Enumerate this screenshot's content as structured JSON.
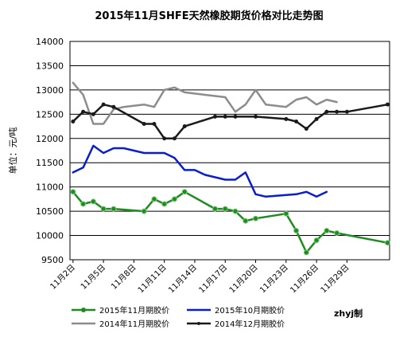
{
  "chart_data": {
    "type": "line",
    "title": "2015年11月SHFE天然橡胶期货价格对比走势图",
    "ylabel": "单位：元/吨",
    "ylim": [
      9500,
      14000
    ],
    "yticks": [
      9500,
      10000,
      10500,
      11000,
      11500,
      12000,
      12500,
      13000,
      13500,
      14000
    ],
    "xticks": [
      {
        "x": 2,
        "label": "11月2日"
      },
      {
        "x": 5,
        "label": "11月5日"
      },
      {
        "x": 8,
        "label": "11月8日"
      },
      {
        "x": 11,
        "label": "11月11日"
      },
      {
        "x": 14,
        "label": "11月14日"
      },
      {
        "x": 17,
        "label": "11月17日"
      },
      {
        "x": 20,
        "label": "11月20日"
      },
      {
        "x": 23,
        "label": "11月23日"
      },
      {
        "x": 26,
        "label": "11月26日"
      },
      {
        "x": 29,
        "label": "11月29日"
      }
    ],
    "xlim": [
      1.7,
      33.2
    ],
    "grid": true,
    "legend_position": "bottom",
    "credit": "zhyj制",
    "series": [
      {
        "name": "2015年11月期胶价",
        "color": "#1f8c1f",
        "marker": "circle",
        "points": [
          [
            2,
            10900
          ],
          [
            3,
            10650
          ],
          [
            4,
            10700
          ],
          [
            5,
            10550
          ],
          [
            6,
            10550
          ],
          [
            9,
            10500
          ],
          [
            10,
            10750
          ],
          [
            11,
            10650
          ],
          [
            12,
            10750
          ],
          [
            13,
            10900
          ],
          [
            16,
            10550
          ],
          [
            17,
            10550
          ],
          [
            18,
            10500
          ],
          [
            19,
            10300
          ],
          [
            20,
            10350
          ],
          [
            23,
            10450
          ],
          [
            24,
            10100
          ],
          [
            25,
            9650
          ],
          [
            26,
            9900
          ],
          [
            27,
            10100
          ],
          [
            28,
            10050
          ],
          [
            33,
            9850
          ]
        ]
      },
      {
        "name": "2015年10月期胶价",
        "color": "#0a1ecc",
        "marker": "none",
        "points": [
          [
            2,
            11300
          ],
          [
            3,
            11400
          ],
          [
            4,
            11850
          ],
          [
            5,
            11700
          ],
          [
            6,
            11800
          ],
          [
            7,
            11800
          ],
          [
            9,
            11700
          ],
          [
            10,
            11700
          ],
          [
            11,
            11700
          ],
          [
            12,
            11600
          ],
          [
            13,
            11350
          ],
          [
            14,
            11350
          ],
          [
            15,
            11250
          ],
          [
            17,
            11150
          ],
          [
            18,
            11150
          ],
          [
            19,
            11300
          ],
          [
            20,
            10850
          ],
          [
            21,
            10800
          ],
          [
            24,
            10850
          ],
          [
            25,
            10900
          ],
          [
            26,
            10800
          ],
          [
            27,
            10900
          ]
        ]
      },
      {
        "name": "2014年11月期胶价",
        "color": "#8c8c8c",
        "marker": "none",
        "points": [
          [
            2,
            13150
          ],
          [
            3,
            12900
          ],
          [
            4,
            12300
          ],
          [
            5,
            12300
          ],
          [
            6,
            12600
          ],
          [
            7,
            12650
          ],
          [
            9,
            12700
          ],
          [
            10,
            12650
          ],
          [
            11,
            13000
          ],
          [
            12,
            13050
          ],
          [
            13,
            12950
          ],
          [
            15,
            12900
          ],
          [
            17,
            12850
          ],
          [
            18,
            12550
          ],
          [
            19,
            12700
          ],
          [
            20,
            13000
          ],
          [
            21,
            12700
          ],
          [
            23,
            12650
          ],
          [
            24,
            12800
          ],
          [
            25,
            12850
          ],
          [
            26,
            12700
          ],
          [
            27,
            12800
          ],
          [
            28,
            12750
          ]
        ]
      },
      {
        "name": "2014年12月期胶价",
        "color": "#1a1a1a",
        "marker": "dot",
        "points": [
          [
            2,
            12350
          ],
          [
            3,
            12550
          ],
          [
            4,
            12500
          ],
          [
            5,
            12700
          ],
          [
            6,
            12650
          ],
          [
            9,
            12300
          ],
          [
            10,
            12300
          ],
          [
            11,
            12000
          ],
          [
            12,
            12000
          ],
          [
            13,
            12250
          ],
          [
            16,
            12450
          ],
          [
            17,
            12450
          ],
          [
            18,
            12450
          ],
          [
            20,
            12450
          ],
          [
            23,
            12400
          ],
          [
            24,
            12350
          ],
          [
            25,
            12200
          ],
          [
            26,
            12400
          ],
          [
            27,
            12550
          ],
          [
            28,
            12550
          ],
          [
            29,
            12550
          ],
          [
            33,
            12700
          ]
        ]
      }
    ]
  }
}
